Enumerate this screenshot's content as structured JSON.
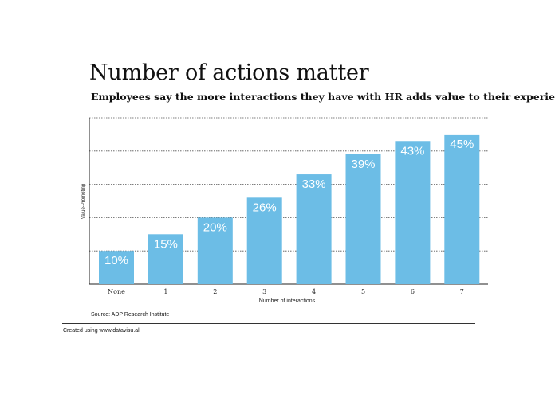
{
  "chart_data": {
    "type": "bar",
    "title": "Number of actions matter",
    "subtitle": "Employees say the more interactions they have with HR adds value to their experience",
    "xlabel": "Number of interactions",
    "ylabel": "Value-Promoting",
    "categories": [
      "None",
      "1",
      "2",
      "3",
      "4",
      "5",
      "6",
      "7"
    ],
    "values": [
      10,
      15,
      20,
      26,
      33,
      39,
      43,
      45
    ],
    "data_labels": [
      "10%",
      "15%",
      "20%",
      "26%",
      "33%",
      "39%",
      "43%",
      "45%"
    ],
    "ylim": [
      0,
      50
    ],
    "grid": true,
    "bar_color": "#6cbde6",
    "label_color": "#ffffff"
  },
  "source": "Source: ADP Research Institute",
  "credit": "Created using www.datavisu.al"
}
